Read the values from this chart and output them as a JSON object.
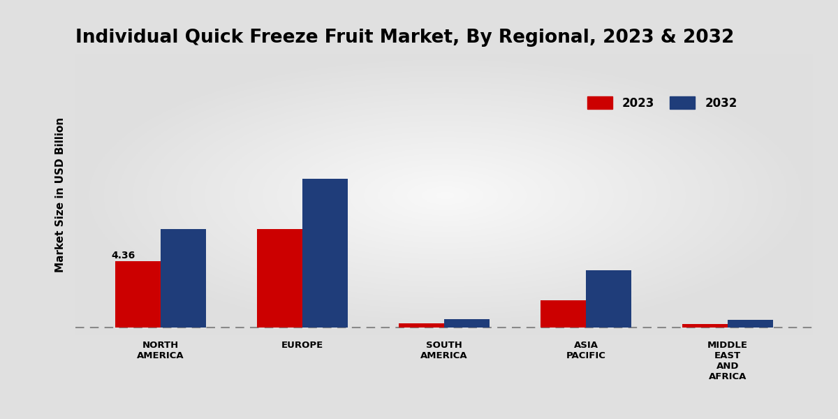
{
  "title": "Individual Quick Freeze Fruit Market, By Regional, 2023 & 2032",
  "ylabel": "Market Size in USD Billion",
  "categories": [
    "NORTH\nAMERICA",
    "EUROPE",
    "SOUTH\nAMERICA",
    "ASIA\nPACIFIC",
    "MIDDLE\nEAST\nAND\nAFRICA"
  ],
  "values_2023": [
    4.36,
    6.5,
    0.28,
    1.8,
    0.22
  ],
  "values_2032": [
    6.5,
    9.8,
    0.55,
    3.8,
    0.5
  ],
  "color_2023": "#cc0000",
  "color_2032": "#1f3d7a",
  "annotation_value": "4.36",
  "annotation_bar": 0,
  "bar_width": 0.32,
  "title_fontsize": 19,
  "label_fontsize": 11,
  "legend_fontsize": 13,
  "ylim": [
    -0.5,
    18
  ],
  "figsize": [
    12.0,
    6.0
  ],
  "dpi": 100
}
